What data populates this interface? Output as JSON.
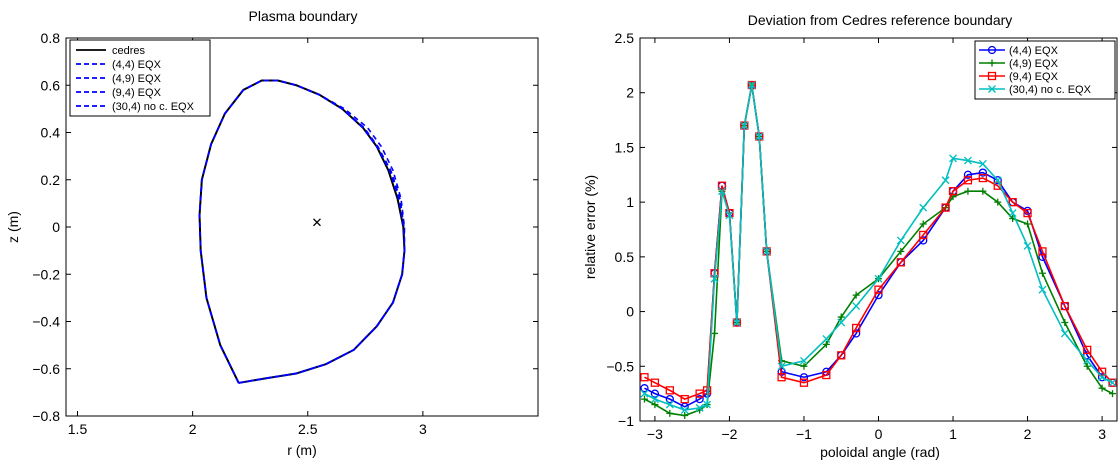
{
  "chart_data": [
    {
      "type": "line",
      "title": "Plasma boundary",
      "xlabel": "r (m)",
      "ylabel": "z (m)",
      "xlim": [
        1.45,
        3.5
      ],
      "ylim": [
        -0.8,
        0.8
      ],
      "xticks": [
        "1.5",
        "2",
        "2.5",
        "3"
      ],
      "yticks": [
        "−0.8",
        "−0.6",
        "−0.4",
        "−0.2",
        "0",
        "0.2",
        "0.4",
        "0.6",
        "0.8"
      ],
      "grid": false,
      "legend_position": "top-left",
      "axis_point": {
        "r": 2.54,
        "z": 0.02,
        "marker": "x"
      },
      "series": [
        {
          "name": "cedres",
          "color": "#000000",
          "style": "solid",
          "x": [
            2.2,
            2.12,
            2.06,
            2.035,
            2.03,
            2.04,
            2.08,
            2.14,
            2.22,
            2.3,
            2.37,
            2.45,
            2.55,
            2.65,
            2.74,
            2.8,
            2.85,
            2.89,
            2.915,
            2.92,
            2.91,
            2.87,
            2.8,
            2.7,
            2.58,
            2.45,
            2.32,
            2.2
          ],
          "y": [
            -0.66,
            -0.5,
            -0.3,
            -0.1,
            0.05,
            0.2,
            0.35,
            0.48,
            0.58,
            0.62,
            0.62,
            0.6,
            0.56,
            0.5,
            0.42,
            0.34,
            0.24,
            0.12,
            0.0,
            -0.1,
            -0.2,
            -0.32,
            -0.42,
            -0.52,
            -0.58,
            -0.62,
            -0.64,
            -0.66
          ]
        },
        {
          "name": "(4,4) EQX",
          "color": "#0000ff",
          "style": "dashed",
          "x": [
            2.2,
            2.12,
            2.06,
            2.035,
            2.03,
            2.04,
            2.08,
            2.14,
            2.22,
            2.3,
            2.37,
            2.45,
            2.55,
            2.65,
            2.74,
            2.8,
            2.86,
            2.9,
            2.918,
            2.92,
            2.91,
            2.87,
            2.8,
            2.7,
            2.58,
            2.45,
            2.32,
            2.2
          ],
          "y": [
            -0.66,
            -0.5,
            -0.3,
            -0.1,
            0.05,
            0.2,
            0.35,
            0.48,
            0.58,
            0.62,
            0.62,
            0.6,
            0.56,
            0.5,
            0.42,
            0.34,
            0.24,
            0.12,
            0.0,
            -0.1,
            -0.2,
            -0.32,
            -0.42,
            -0.52,
            -0.58,
            -0.62,
            -0.64,
            -0.66
          ]
        },
        {
          "name": "(4,9) EQX",
          "color": "#0000ff",
          "style": "dashed",
          "x": [
            2.2,
            2.12,
            2.06,
            2.035,
            2.03,
            2.04,
            2.08,
            2.14,
            2.22,
            2.3,
            2.37,
            2.45,
            2.55,
            2.65,
            2.745,
            2.805,
            2.86,
            2.9,
            2.918,
            2.92,
            2.91,
            2.87,
            2.8,
            2.7,
            2.58,
            2.45,
            2.32,
            2.2
          ],
          "y": [
            -0.66,
            -0.5,
            -0.3,
            -0.1,
            0.05,
            0.2,
            0.35,
            0.48,
            0.58,
            0.62,
            0.62,
            0.6,
            0.56,
            0.5,
            0.42,
            0.34,
            0.24,
            0.12,
            0.0,
            -0.1,
            -0.2,
            -0.32,
            -0.42,
            -0.52,
            -0.58,
            -0.62,
            -0.64,
            -0.66
          ]
        },
        {
          "name": "(9,4) EQX",
          "color": "#0000ff",
          "style": "dashed",
          "x": [
            2.2,
            2.12,
            2.06,
            2.035,
            2.03,
            2.04,
            2.08,
            2.14,
            2.22,
            2.3,
            2.37,
            2.45,
            2.55,
            2.65,
            2.74,
            2.8,
            2.855,
            2.895,
            2.917,
            2.92,
            2.91,
            2.87,
            2.8,
            2.7,
            2.58,
            2.45,
            2.32,
            2.2
          ],
          "y": [
            -0.66,
            -0.5,
            -0.3,
            -0.1,
            0.05,
            0.2,
            0.35,
            0.48,
            0.58,
            0.62,
            0.62,
            0.6,
            0.56,
            0.5,
            0.42,
            0.34,
            0.24,
            0.12,
            0.0,
            -0.1,
            -0.2,
            -0.32,
            -0.42,
            -0.52,
            -0.58,
            -0.62,
            -0.64,
            -0.66
          ]
        },
        {
          "name": "(30,4) no c. EQX",
          "color": "#0000ff",
          "style": "dashed",
          "x": [
            2.2,
            2.12,
            2.06,
            2.035,
            2.03,
            2.04,
            2.08,
            2.14,
            2.22,
            2.3,
            2.37,
            2.45,
            2.55,
            2.66,
            2.76,
            2.82,
            2.87,
            2.905,
            2.92,
            2.92,
            2.91,
            2.87,
            2.8,
            2.7,
            2.58,
            2.45,
            2.32,
            2.2
          ],
          "y": [
            -0.66,
            -0.5,
            -0.3,
            -0.1,
            0.05,
            0.2,
            0.35,
            0.48,
            0.58,
            0.62,
            0.62,
            0.6,
            0.56,
            0.5,
            0.42,
            0.34,
            0.24,
            0.12,
            0.0,
            -0.1,
            -0.2,
            -0.32,
            -0.42,
            -0.52,
            -0.58,
            -0.62,
            -0.64,
            -0.66
          ]
        }
      ]
    },
    {
      "type": "line",
      "title": "Deviation from Cedres reference boundary",
      "xlabel": "poloidal angle (rad)",
      "ylabel": "relative error (%)",
      "xlim": [
        -3.2,
        3.2
      ],
      "ylim": [
        -1,
        2.5
      ],
      "xticks": [
        "−3",
        "−2",
        "−1",
        "0",
        "1",
        "2",
        "3"
      ],
      "yticks": [
        "−1",
        "−0.5",
        "0",
        "0.5",
        "1",
        "1.5",
        "2",
        "2.5"
      ],
      "grid": false,
      "legend_position": "top-right",
      "series": [
        {
          "name": "(4,4) EQX",
          "color": "#0000ff",
          "marker": "circle",
          "x": [
            -3.14,
            -3.0,
            -2.8,
            -2.6,
            -2.4,
            -2.3,
            -2.2,
            -2.1,
            -2.0,
            -1.9,
            -1.8,
            -1.7,
            -1.6,
            -1.5,
            -1.3,
            -1.0,
            -0.7,
            -0.5,
            -0.3,
            0.0,
            0.3,
            0.6,
            0.9,
            1.0,
            1.2,
            1.4,
            1.6,
            1.8,
            2.0,
            2.2,
            2.5,
            2.8,
            3.0,
            3.14
          ],
          "y": [
            -0.7,
            -0.75,
            -0.8,
            -0.87,
            -0.8,
            -0.75,
            0.35,
            1.15,
            0.9,
            -0.1,
            1.7,
            2.07,
            1.6,
            0.55,
            -0.55,
            -0.6,
            -0.55,
            -0.4,
            -0.2,
            0.15,
            0.45,
            0.65,
            0.95,
            1.1,
            1.25,
            1.27,
            1.2,
            1.0,
            0.92,
            0.5,
            0.05,
            -0.4,
            -0.6,
            -0.65
          ]
        },
        {
          "name": "(4,9) EQX",
          "color": "#007f00",
          "marker": "plus",
          "x": [
            -3.14,
            -3.0,
            -2.8,
            -2.6,
            -2.4,
            -2.3,
            -2.2,
            -2.1,
            -2.0,
            -1.9,
            -1.8,
            -1.7,
            -1.6,
            -1.5,
            -1.3,
            -1.0,
            -0.7,
            -0.5,
            -0.3,
            0.0,
            0.3,
            0.6,
            0.9,
            1.0,
            1.2,
            1.4,
            1.6,
            1.8,
            2.0,
            2.2,
            2.5,
            2.8,
            3.0,
            3.14
          ],
          "y": [
            -0.8,
            -0.85,
            -0.93,
            -0.95,
            -0.9,
            -0.85,
            -0.2,
            1.1,
            0.9,
            -0.1,
            1.7,
            2.07,
            1.6,
            0.55,
            -0.45,
            -0.5,
            -0.3,
            -0.05,
            0.15,
            0.3,
            0.55,
            0.8,
            0.95,
            1.05,
            1.1,
            1.1,
            1.0,
            0.85,
            0.8,
            0.35,
            -0.1,
            -0.5,
            -0.7,
            -0.75
          ]
        },
        {
          "name": "(9,4) EQX",
          "color": "#ff0000",
          "marker": "square",
          "x": [
            -3.14,
            -3.0,
            -2.8,
            -2.6,
            -2.4,
            -2.3,
            -2.2,
            -2.1,
            -2.0,
            -1.9,
            -1.8,
            -1.7,
            -1.6,
            -1.5,
            -1.3,
            -1.0,
            -0.7,
            -0.5,
            -0.3,
            0.0,
            0.3,
            0.6,
            0.9,
            1.0,
            1.2,
            1.4,
            1.6,
            1.8,
            2.0,
            2.2,
            2.5,
            2.8,
            3.0,
            3.14
          ],
          "y": [
            -0.6,
            -0.65,
            -0.72,
            -0.8,
            -0.75,
            -0.72,
            0.35,
            1.15,
            0.9,
            -0.1,
            1.7,
            2.07,
            1.6,
            0.55,
            -0.6,
            -0.65,
            -0.58,
            -0.4,
            -0.15,
            0.2,
            0.45,
            0.7,
            0.95,
            1.1,
            1.2,
            1.22,
            1.15,
            1.0,
            0.9,
            0.55,
            0.05,
            -0.35,
            -0.55,
            -0.65
          ]
        },
        {
          "name": "(30,4) no c. EQX",
          "color": "#00bfbf",
          "marker": "x",
          "x": [
            -3.14,
            -3.0,
            -2.8,
            -2.6,
            -2.4,
            -2.3,
            -2.2,
            -2.1,
            -2.0,
            -1.9,
            -1.8,
            -1.7,
            -1.6,
            -1.5,
            -1.3,
            -1.0,
            -0.7,
            -0.5,
            -0.3,
            0.0,
            0.3,
            0.6,
            0.9,
            1.0,
            1.2,
            1.4,
            1.6,
            1.8,
            2.0,
            2.2,
            2.5,
            2.8,
            3.0,
            3.14
          ],
          "y": [
            -0.75,
            -0.8,
            -0.85,
            -0.9,
            -0.88,
            -0.85,
            0.3,
            1.1,
            0.88,
            -0.1,
            1.7,
            2.07,
            1.6,
            0.55,
            -0.5,
            -0.45,
            -0.25,
            -0.1,
            0.05,
            0.3,
            0.65,
            0.95,
            1.2,
            1.4,
            1.38,
            1.35,
            1.2,
            0.9,
            0.6,
            0.2,
            -0.2,
            -0.45,
            -0.6,
            -0.65
          ]
        }
      ]
    }
  ]
}
